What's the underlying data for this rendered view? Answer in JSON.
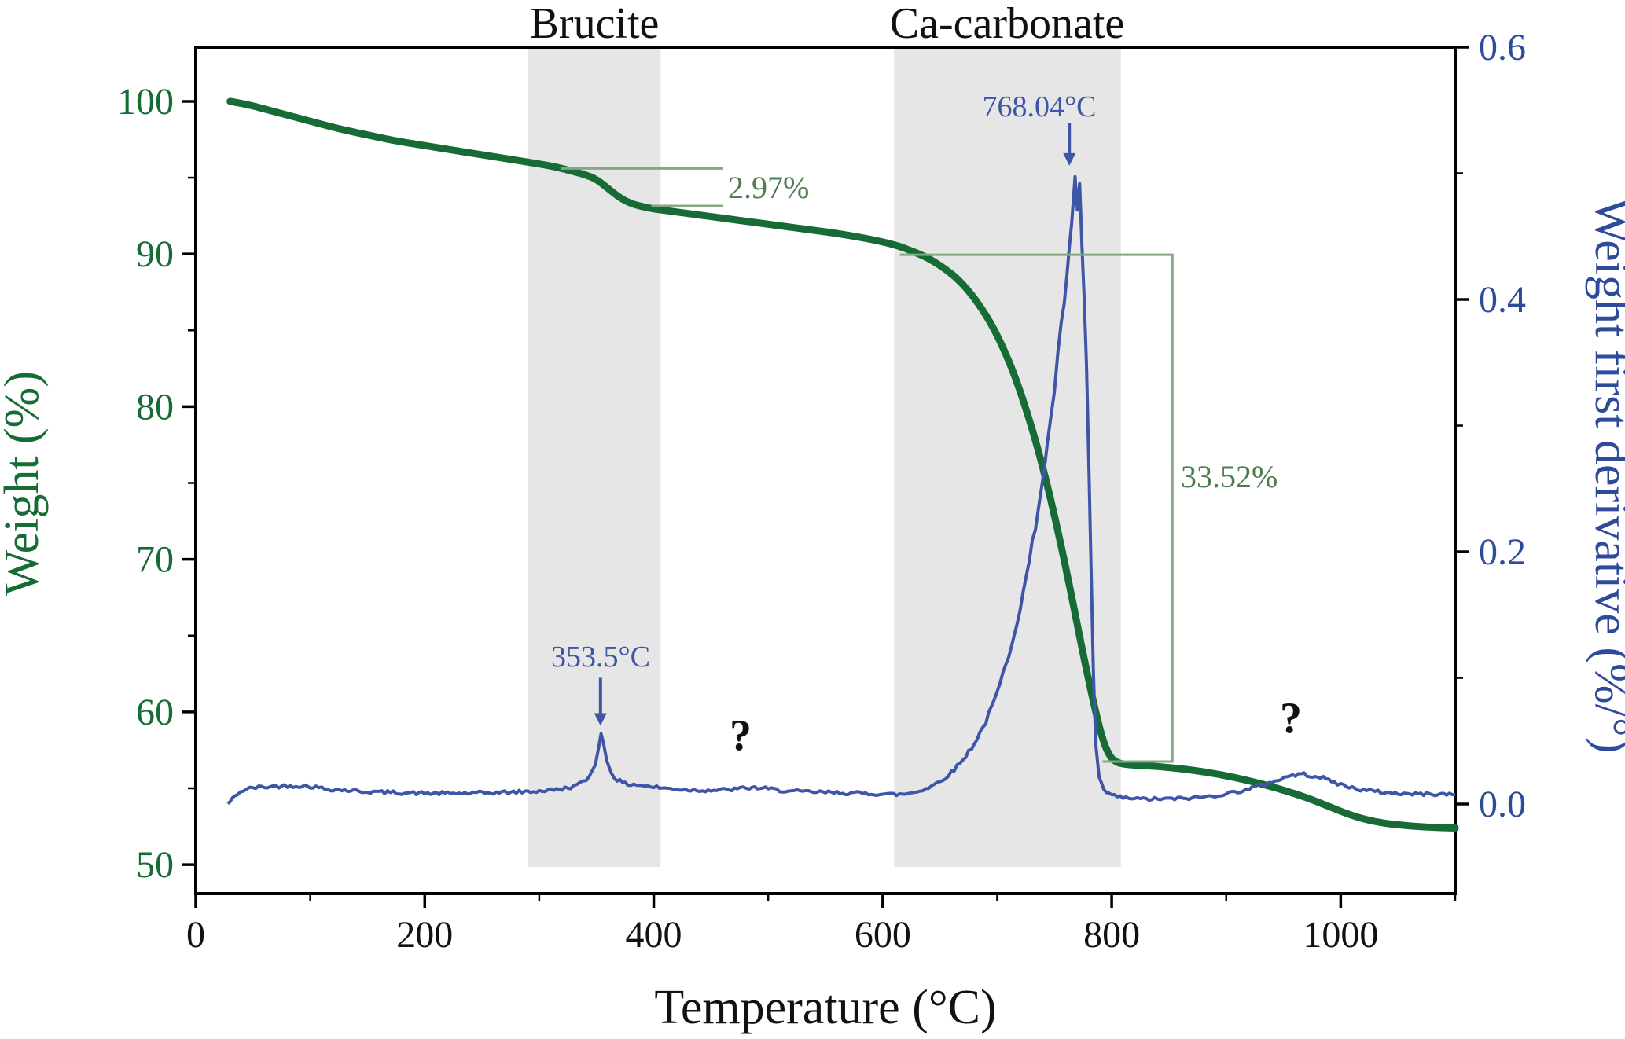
{
  "chart_data": {
    "type": "line",
    "title": "",
    "xlabel": "Temperature (°C)",
    "ylabel_left": "Weight (%)",
    "ylabel_right": "Weight first derivative (%/°)",
    "x_range": [
      0,
      1100
    ],
    "x_ticks": [
      0,
      200,
      400,
      600,
      800,
      1000
    ],
    "x_minor_ticks": [
      100,
      300,
      500,
      700,
      900,
      1100
    ],
    "y_left_range": [
      48.1,
      103.55
    ],
    "y_left_ticks": [
      50,
      60,
      70,
      80,
      90,
      100
    ],
    "y_left_minor_ticks": [
      55,
      65,
      75,
      85,
      95
    ],
    "y_right_range": [
      -0.071,
      0.6
    ],
    "y_right_ticks": [
      0.0,
      0.2,
      0.4,
      0.6
    ],
    "y_right_tick_labels": [
      "0.0",
      "0.2",
      "0.4",
      "0.6"
    ],
    "y_right_minor_ticks": [
      0.1,
      0.3,
      0.5
    ],
    "grid": false,
    "legend": "none",
    "colors": {
      "weight_curve": "#176b35",
      "derivative_curve": "#3f56a8",
      "band_fill": "#e6e6e6",
      "bracket_line": "#84a886",
      "annotation_green_text": "#4e7d52",
      "annotation_blue_text": "#3f56a8",
      "axis_black": "#111111"
    },
    "bands": [
      {
        "label": "Brucite",
        "x0": 290,
        "x1": 406
      },
      {
        "label": "Ca-carbonate",
        "x0": 610,
        "x1": 808
      }
    ],
    "annotations": {
      "brucite_loss": "2.97%",
      "brucite_loss_pct": 2.97,
      "carbonate_loss": "33.52%",
      "carbonate_loss_pct": 33.52,
      "peak1_label": "353.5°C",
      "peak1_temp_c": 353.5,
      "peak2_label": "768.04°C",
      "peak2_temp_c": 768.04,
      "question1": "?",
      "question2": "?"
    },
    "series": [
      {
        "name": "Weight",
        "axis": "left",
        "points": [
          [
            30,
            100
          ],
          [
            45,
            99.8
          ],
          [
            60,
            99.5
          ],
          [
            80,
            99.1
          ],
          [
            100,
            98.7
          ],
          [
            125,
            98.2
          ],
          [
            150,
            97.8
          ],
          [
            175,
            97.4
          ],
          [
            200,
            97.1
          ],
          [
            225,
            96.8
          ],
          [
            250,
            96.5
          ],
          [
            275,
            96.2
          ],
          [
            300,
            95.9
          ],
          [
            315,
            95.7
          ],
          [
            330,
            95.4
          ],
          [
            340,
            95.2
          ],
          [
            350,
            94.9
          ],
          [
            360,
            94.3
          ],
          [
            370,
            93.7
          ],
          [
            380,
            93.3
          ],
          [
            390,
            93.1
          ],
          [
            400,
            92.95
          ],
          [
            420,
            92.75
          ],
          [
            440,
            92.55
          ],
          [
            460,
            92.35
          ],
          [
            480,
            92.15
          ],
          [
            500,
            91.95
          ],
          [
            520,
            91.75
          ],
          [
            540,
            91.55
          ],
          [
            560,
            91.35
          ],
          [
            580,
            91.1
          ],
          [
            600,
            90.8
          ],
          [
            615,
            90.5
          ],
          [
            625,
            90.2
          ],
          [
            635,
            89.9
          ],
          [
            645,
            89.5
          ],
          [
            655,
            89.0
          ],
          [
            665,
            88.4
          ],
          [
            675,
            87.6
          ],
          [
            685,
            86.6
          ],
          [
            695,
            85.4
          ],
          [
            705,
            83.9
          ],
          [
            715,
            82.1
          ],
          [
            725,
            79.9
          ],
          [
            735,
            77.4
          ],
          [
            745,
            74.5
          ],
          [
            755,
            71.2
          ],
          [
            765,
            67.6
          ],
          [
            775,
            63.8
          ],
          [
            785,
            60.3
          ],
          [
            792,
            58.2
          ],
          [
            798,
            57.1
          ],
          [
            804,
            56.7
          ],
          [
            812,
            56.55
          ],
          [
            825,
            56.5
          ],
          [
            845,
            56.4
          ],
          [
            870,
            56.2
          ],
          [
            895,
            55.9
          ],
          [
            920,
            55.5
          ],
          [
            945,
            55.0
          ],
          [
            970,
            54.4
          ],
          [
            990,
            53.8
          ],
          [
            1010,
            53.2
          ],
          [
            1030,
            52.8
          ],
          [
            1050,
            52.6
          ],
          [
            1075,
            52.45
          ],
          [
            1100,
            52.4
          ]
        ]
      },
      {
        "name": "Weight first derivative",
        "axis": "right",
        "points": [
          [
            28,
            0.0
          ],
          [
            32,
            0.004
          ],
          [
            36,
            0.008
          ],
          [
            42,
            0.011
          ],
          [
            50,
            0.013
          ],
          [
            60,
            0.0135
          ],
          [
            70,
            0.014
          ],
          [
            80,
            0.0145
          ],
          [
            90,
            0.0145
          ],
          [
            100,
            0.014
          ],
          [
            115,
            0.012
          ],
          [
            130,
            0.011
          ],
          [
            145,
            0.01
          ],
          [
            160,
            0.0095
          ],
          [
            180,
            0.009
          ],
          [
            200,
            0.0085
          ],
          [
            220,
            0.0085
          ],
          [
            240,
            0.0085
          ],
          [
            260,
            0.009
          ],
          [
            280,
            0.0095
          ],
          [
            295,
            0.01
          ],
          [
            310,
            0.011
          ],
          [
            320,
            0.012
          ],
          [
            330,
            0.014
          ],
          [
            338,
            0.017
          ],
          [
            344,
            0.022
          ],
          [
            349,
            0.032
          ],
          [
            352,
            0.047
          ],
          [
            354,
            0.055
          ],
          [
            356,
            0.048
          ],
          [
            359,
            0.035
          ],
          [
            363,
            0.025
          ],
          [
            368,
            0.019
          ],
          [
            375,
            0.016
          ],
          [
            385,
            0.0155
          ],
          [
            395,
            0.014
          ],
          [
            410,
            0.0125
          ],
          [
            425,
            0.0115
          ],
          [
            440,
            0.011
          ],
          [
            455,
            0.011
          ],
          [
            468,
            0.0115
          ],
          [
            478,
            0.0125
          ],
          [
            486,
            0.013
          ],
          [
            495,
            0.0125
          ],
          [
            505,
            0.0115
          ],
          [
            520,
            0.01
          ],
          [
            540,
            0.0095
          ],
          [
            560,
            0.009
          ],
          [
            580,
            0.0085
          ],
          [
            600,
            0.008
          ],
          [
            612,
            0.0075
          ],
          [
            620,
            0.008
          ],
          [
            630,
            0.01
          ],
          [
            640,
            0.013
          ],
          [
            650,
            0.018
          ],
          [
            660,
            0.025
          ],
          [
            670,
            0.035
          ],
          [
            680,
            0.048
          ],
          [
            690,
            0.065
          ],
          [
            700,
            0.088
          ],
          [
            710,
            0.118
          ],
          [
            720,
            0.155
          ],
          [
            728,
            0.192
          ],
          [
            736,
            0.235
          ],
          [
            744,
            0.285
          ],
          [
            750,
            0.33
          ],
          [
            756,
            0.378
          ],
          [
            761,
            0.42
          ],
          [
            765,
            0.455
          ],
          [
            768,
            0.495
          ],
          [
            770,
            0.47
          ],
          [
            772,
            0.488
          ],
          [
            774,
            0.445
          ],
          [
            776,
            0.4
          ],
          [
            778,
            0.345
          ],
          [
            780,
            0.27
          ],
          [
            782,
            0.185
          ],
          [
            784,
            0.105
          ],
          [
            786,
            0.048
          ],
          [
            789,
            0.02
          ],
          [
            793,
            0.011
          ],
          [
            800,
            0.007
          ],
          [
            810,
            0.005
          ],
          [
            825,
            0.004
          ],
          [
            845,
            0.004
          ],
          [
            865,
            0.0045
          ],
          [
            885,
            0.006
          ],
          [
            905,
            0.009
          ],
          [
            920,
            0.012
          ],
          [
            935,
            0.016
          ],
          [
            948,
            0.02
          ],
          [
            958,
            0.023
          ],
          [
            968,
            0.0235
          ],
          [
            980,
            0.022
          ],
          [
            992,
            0.018
          ],
          [
            1005,
            0.014
          ],
          [
            1020,
            0.011
          ],
          [
            1040,
            0.009
          ],
          [
            1060,
            0.008
          ],
          [
            1080,
            0.008
          ],
          [
            1100,
            0.0075
          ]
        ]
      }
    ]
  }
}
